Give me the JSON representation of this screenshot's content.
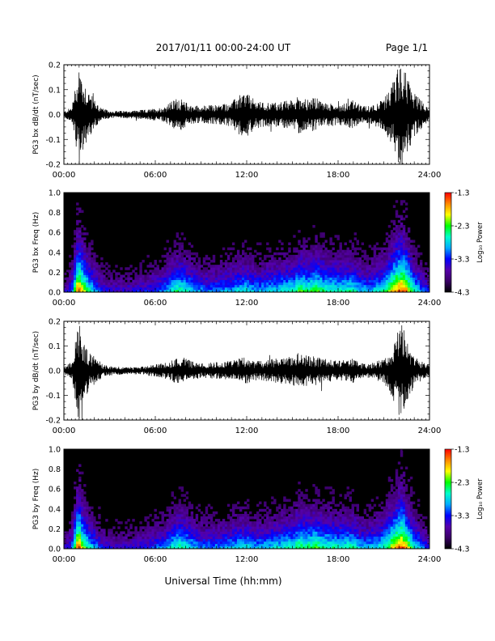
{
  "header": {
    "title": "2017/01/11  00:00-24:00 UT",
    "page": "Page 1/1"
  },
  "footer": {
    "xlabel": "Universal Time (hh:mm)"
  },
  "time_ticks": [
    "00:00",
    "06:00",
    "12:00",
    "18:00",
    "24:00"
  ],
  "colorbar": {
    "label": "Log₁₀ Power",
    "ticks": [
      "-1.3",
      "-2.3",
      "-3.3",
      "-4.3"
    ],
    "colors": [
      "#000000",
      "#3a0066",
      "#5500aa",
      "#0000ff",
      "#00aaff",
      "#00ffcc",
      "#00ff00",
      "#ffff00",
      "#ff8800",
      "#ff0000"
    ]
  },
  "chart_data": [
    {
      "type": "line",
      "ylabel": "PG3 bx dB/dt (nT/sec)",
      "xlim": [
        0,
        24
      ],
      "ylim": [
        -0.2,
        0.2
      ],
      "yticks": [
        "0.2",
        "0.1",
        "0.0",
        "-0.1",
        "-0.2"
      ],
      "x_hours": [
        0,
        0.5,
        0.9,
        1.0,
        1.2,
        1.7,
        2.0,
        2.5,
        3,
        4,
        5,
        5.5,
        6,
        6.5,
        7,
        7.5,
        8,
        8.3,
        9,
        10,
        11,
        11.5,
        12,
        12.5,
        13,
        14,
        15,
        15.5,
        16,
        16.5,
        17,
        18,
        19,
        19.5,
        20,
        21,
        21.5,
        22,
        22.2,
        22.5,
        23,
        24
      ],
      "envelope": [
        0.012,
        0.03,
        0.16,
        0.22,
        0.15,
        0.09,
        0.06,
        0.025,
        0.015,
        0.015,
        0.018,
        0.02,
        0.025,
        0.03,
        0.05,
        0.07,
        0.05,
        0.04,
        0.035,
        0.04,
        0.05,
        0.08,
        0.09,
        0.06,
        0.05,
        0.05,
        0.06,
        0.08,
        0.06,
        0.07,
        0.05,
        0.04,
        0.06,
        0.035,
        0.035,
        0.06,
        0.12,
        0.2,
        0.21,
        0.16,
        0.09,
        0.02
      ]
    },
    {
      "type": "heatmap",
      "ylabel": "PG3 bx Freq (Hz)",
      "xlim": [
        0,
        24
      ],
      "ylim": [
        0,
        1.0
      ],
      "yticks": [
        "1.0",
        "0.8",
        "0.6",
        "0.4",
        "0.2",
        "0.0"
      ],
      "zlim": [
        -4.3,
        -1.3
      ],
      "x_hours": [
        0,
        0.5,
        0.9,
        1.0,
        1.2,
        1.7,
        2.0,
        2.5,
        3,
        4,
        5,
        5.5,
        6,
        6.5,
        7,
        7.5,
        8,
        8.3,
        9,
        10,
        11,
        11.5,
        12,
        12.5,
        13,
        14,
        15,
        15.5,
        16,
        16.5,
        17,
        18,
        19,
        19.5,
        20,
        21,
        21.5,
        22,
        22.2,
        22.5,
        23,
        24
      ],
      "activity": [
        0.25,
        0.4,
        0.95,
        1.0,
        0.85,
        0.6,
        0.5,
        0.35,
        0.3,
        0.3,
        0.33,
        0.35,
        0.4,
        0.45,
        0.55,
        0.65,
        0.6,
        0.55,
        0.45,
        0.45,
        0.5,
        0.55,
        0.55,
        0.5,
        0.5,
        0.55,
        0.6,
        0.7,
        0.65,
        0.72,
        0.65,
        0.6,
        0.62,
        0.5,
        0.5,
        0.6,
        0.8,
        0.98,
        1.0,
        0.9,
        0.6,
        0.3
      ]
    },
    {
      "type": "line",
      "ylabel": "PG3 by dB/dt (nT/sec)",
      "xlim": [
        0,
        24
      ],
      "ylim": [
        -0.2,
        0.2
      ],
      "yticks": [
        "0.2",
        "0.1",
        "0.0",
        "-0.1",
        "-0.2"
      ],
      "x_hours": [
        0,
        0.5,
        0.9,
        1.0,
        1.2,
        1.7,
        2.0,
        2.5,
        3,
        4,
        5,
        5.5,
        6,
        6.5,
        7,
        7.5,
        8,
        8.3,
        9,
        10,
        11,
        11.5,
        12,
        12.5,
        13,
        14,
        15,
        15.5,
        16,
        16.5,
        17,
        18,
        19,
        19.5,
        20,
        21,
        21.5,
        22,
        22.2,
        22.5,
        23,
        24
      ],
      "envelope": [
        0.015,
        0.035,
        0.17,
        0.21,
        0.14,
        0.07,
        0.06,
        0.03,
        0.02,
        0.015,
        0.015,
        0.02,
        0.025,
        0.03,
        0.04,
        0.06,
        0.05,
        0.04,
        0.03,
        0.035,
        0.04,
        0.05,
        0.06,
        0.04,
        0.04,
        0.05,
        0.06,
        0.08,
        0.06,
        0.06,
        0.05,
        0.04,
        0.05,
        0.03,
        0.03,
        0.05,
        0.1,
        0.19,
        0.2,
        0.14,
        0.06,
        0.02
      ]
    },
    {
      "type": "heatmap",
      "ylabel": "PG3 by Freq (Hz)",
      "xlim": [
        0,
        24
      ],
      "ylim": [
        0,
        1.0
      ],
      "yticks": [
        "1.0",
        "0.8",
        "0.6",
        "0.4",
        "0.2",
        "0.0"
      ],
      "zlim": [
        -4.3,
        -1.3
      ],
      "x_hours": [
        0,
        0.5,
        0.9,
        1.0,
        1.2,
        1.7,
        2.0,
        2.5,
        3,
        4,
        5,
        5.5,
        6,
        6.5,
        7,
        7.5,
        8,
        8.3,
        9,
        10,
        11,
        11.5,
        12,
        12.5,
        13,
        14,
        15,
        15.5,
        16,
        16.5,
        17,
        18,
        19,
        19.5,
        20,
        21,
        21.5,
        22,
        22.2,
        22.5,
        23,
        24
      ],
      "activity": [
        0.25,
        0.4,
        0.95,
        1.0,
        0.8,
        0.55,
        0.5,
        0.35,
        0.3,
        0.3,
        0.33,
        0.35,
        0.4,
        0.45,
        0.55,
        0.65,
        0.6,
        0.55,
        0.45,
        0.45,
        0.5,
        0.55,
        0.55,
        0.5,
        0.5,
        0.55,
        0.6,
        0.7,
        0.65,
        0.7,
        0.65,
        0.6,
        0.62,
        0.5,
        0.5,
        0.6,
        0.8,
        0.95,
        1.0,
        0.85,
        0.6,
        0.3
      ]
    }
  ]
}
